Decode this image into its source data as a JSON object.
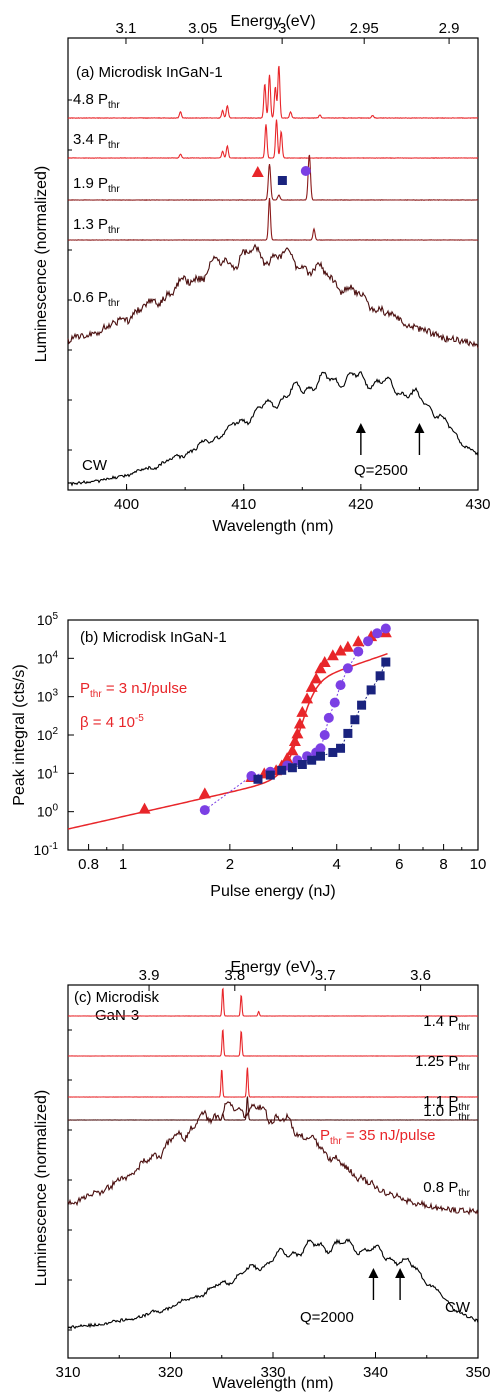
{
  "chart_data": [
    {
      "panel": "a",
      "type": "line",
      "annotation": "(a) Microdisk InGaN-1",
      "xlabel": "Wavelength (nm)",
      "x2label": "Energy (eV)",
      "ylabel": "Luminescence (normalized)",
      "xlim": [
        395,
        430
      ],
      "xticks": [
        400,
        410,
        420,
        430
      ],
      "x2ticks": [
        "3.1",
        "3.05",
        "3",
        "2.95",
        "2.9"
      ],
      "x2tick_values_ev": [
        3.1,
        3.05,
        3.0,
        2.95,
        2.9
      ],
      "colors": {
        "lasing": "#e8262a",
        "sub": "#8b1a1a",
        "dark": "#4a0e0e",
        "cw": "#000000"
      },
      "series": [
        {
          "name": "4.8 P",
          "sub": "thr",
          "color": "lasing",
          "peaks": [
            [
              404.6,
              0.1
            ],
            [
              408.2,
              0.12
            ],
            [
              408.6,
              0.2
            ],
            [
              411.8,
              0.55
            ],
            [
              412.2,
              0.7
            ],
            [
              412.7,
              0.5
            ],
            [
              413.0,
              0.85
            ],
            [
              414.0,
              0.1
            ],
            [
              416.5,
              0.05
            ],
            [
              421.0,
              0.04
            ]
          ]
        },
        {
          "name": "3.4 P",
          "sub": "thr",
          "color": "lasing",
          "peaks": [
            [
              404.6,
              0.08
            ],
            [
              408.2,
              0.14
            ],
            [
              408.6,
              0.25
            ],
            [
              411.9,
              0.7
            ],
            [
              412.8,
              0.8
            ],
            [
              413.2,
              0.55
            ]
          ]
        },
        {
          "name": "1.9 P",
          "sub": "thr",
          "color": "sub",
          "peaks": [
            [
              412.2,
              0.75
            ],
            [
              413.0,
              0.1
            ],
            [
              415.6,
              0.95
            ]
          ],
          "markers": [
            {
              "shape": "triangle",
              "x": 411.2,
              "color": "#e8262a"
            },
            {
              "shape": "square",
              "x": 413.3,
              "color": "#1a237e"
            },
            {
              "shape": "circle",
              "x": 415.3,
              "color": "#7b3fe4"
            }
          ]
        },
        {
          "name": "1.3 P",
          "sub": "thr",
          "color": "sub",
          "peaks": [
            [
              412.2,
              0.95
            ],
            [
              416.0,
              0.25
            ]
          ]
        },
        {
          "name": "0.6 P",
          "sub": "thr",
          "color": "dark",
          "broad": true
        },
        {
          "name": "CW",
          "color": "cw",
          "broad": true
        }
      ],
      "annotations": [
        {
          "text": "Q=2500",
          "arrows_x": [
            420,
            425
          ]
        }
      ]
    },
    {
      "panel": "b",
      "type": "scatter",
      "annotation": "(b) Microdisk InGaN-1",
      "xlabel": "Pulse energy (nJ)",
      "ylabel": "Peak integral (cts/s)",
      "xscale": "log",
      "yscale": "log",
      "xlim": [
        0.7,
        10
      ],
      "ylim": [
        0.1,
        100000
      ],
      "xticks": [
        "0.8",
        "1",
        "2",
        "4",
        "6",
        "8",
        "10"
      ],
      "xtick_values": [
        0.8,
        1,
        2,
        4,
        6,
        8,
        10
      ],
      "yticks_exp": [
        "-1",
        "0",
        "1",
        "2",
        "3",
        "4",
        "5"
      ],
      "ytick_base": "10",
      "legend_text": [
        {
          "main": "P",
          "sub": "thr",
          "rest": " = 3 nJ/pulse"
        },
        {
          "main": "β = 4 10",
          "sup": "-5"
        }
      ],
      "series": [
        {
          "marker": "triangle",
          "color": "#e8262a",
          "points": [
            [
              1.15,
              1.2
            ],
            [
              1.7,
              3
            ],
            [
              2.3,
              8
            ],
            [
              2.5,
              10
            ],
            [
              2.7,
              12
            ],
            [
              2.8,
              16
            ],
            [
              2.9,
              25
            ],
            [
              3.0,
              40
            ],
            [
              3.05,
              70
            ],
            [
              3.1,
              110
            ],
            [
              3.15,
              200
            ],
            [
              3.2,
              400
            ],
            [
              3.3,
              900
            ],
            [
              3.4,
              1800
            ],
            [
              3.5,
              3000
            ],
            [
              3.6,
              5500
            ],
            [
              3.7,
              8000
            ],
            [
              3.9,
              12000
            ],
            [
              4.1,
              16000
            ],
            [
              4.3,
              20000
            ],
            [
              4.6,
              28000
            ],
            [
              5.0,
              38000
            ],
            [
              5.5,
              48000
            ]
          ]
        },
        {
          "marker": "circle",
          "color": "#7b3fe4",
          "points": [
            [
              1.7,
              1.1
            ],
            [
              2.3,
              8.5
            ],
            [
              2.6,
              11
            ],
            [
              2.9,
              16
            ],
            [
              3.1,
              22
            ],
            [
              3.3,
              28
            ],
            [
              3.5,
              35
            ],
            [
              3.6,
              45
            ],
            [
              3.7,
              100
            ],
            [
              3.8,
              280
            ],
            [
              3.95,
              700
            ],
            [
              4.1,
              2000
            ],
            [
              4.3,
              5500
            ],
            [
              4.6,
              15000
            ],
            [
              4.9,
              28000
            ],
            [
              5.2,
              45000
            ],
            [
              5.5,
              60000
            ]
          ]
        },
        {
          "marker": "square",
          "color": "#1a237e",
          "points": [
            [
              2.4,
              7
            ],
            [
              2.6,
              9
            ],
            [
              2.8,
              12
            ],
            [
              3.0,
              14
            ],
            [
              3.2,
              17
            ],
            [
              3.4,
              22
            ],
            [
              3.6,
              28
            ],
            [
              3.9,
              35
            ],
            [
              4.1,
              45
            ],
            [
              4.3,
              110
            ],
            [
              4.5,
              250
            ],
            [
              4.7,
              600
            ],
            [
              5.0,
              1500
            ],
            [
              5.3,
              3500
            ],
            [
              5.5,
              8000
            ]
          ]
        }
      ]
    },
    {
      "panel": "c",
      "type": "line",
      "annotation_l1": "(c) Microdisk",
      "annotation_l2": "GaN-3",
      "xlabel": "Wavelength (nm)",
      "x2label": "Energy (eV)",
      "ylabel": "Luminescence (normalized)",
      "xlim": [
        310,
        350
      ],
      "xticks": [
        310,
        320,
        330,
        340,
        350
      ],
      "x2ticks": [
        "3.9",
        "3.8",
        "3.7",
        "3.6"
      ],
      "x2tick_values_ev": [
        3.9,
        3.8,
        3.7,
        3.6
      ],
      "threshold_note": {
        "main": "P",
        "sub": "thr",
        "rest": " = 35 nJ/pulse"
      },
      "series": [
        {
          "name": "1.4 P",
          "sub": "thr",
          "color": "lasing",
          "peaks": [
            [
              325.1,
              0.95
            ],
            [
              326.9,
              0.7
            ],
            [
              328.6,
              0.15
            ]
          ]
        },
        {
          "name": "1.25 P",
          "sub": "thr",
          "color": "lasing",
          "peaks": [
            [
              325.1,
              0.9
            ],
            [
              326.9,
              0.85
            ]
          ]
        },
        {
          "name": "1.1 P",
          "sub": "thr",
          "color": "lasing",
          "peaks": [
            [
              325.0,
              0.85
            ],
            [
              327.5,
              0.9
            ]
          ]
        },
        {
          "name": "1.0 P",
          "sub": "thr",
          "color": "dark",
          "peaks": [
            [
              325.1,
              0.2
            ],
            [
              327.5,
              0.75
            ]
          ]
        },
        {
          "name": "0.8 P",
          "sub": "thr",
          "color": "dark",
          "broad": true
        },
        {
          "name": "CW",
          "color": "cw",
          "broad": true
        }
      ],
      "annotations": [
        {
          "text": "Q=2000",
          "arrows_x": [
            339.8,
            342.4
          ]
        }
      ]
    }
  ]
}
